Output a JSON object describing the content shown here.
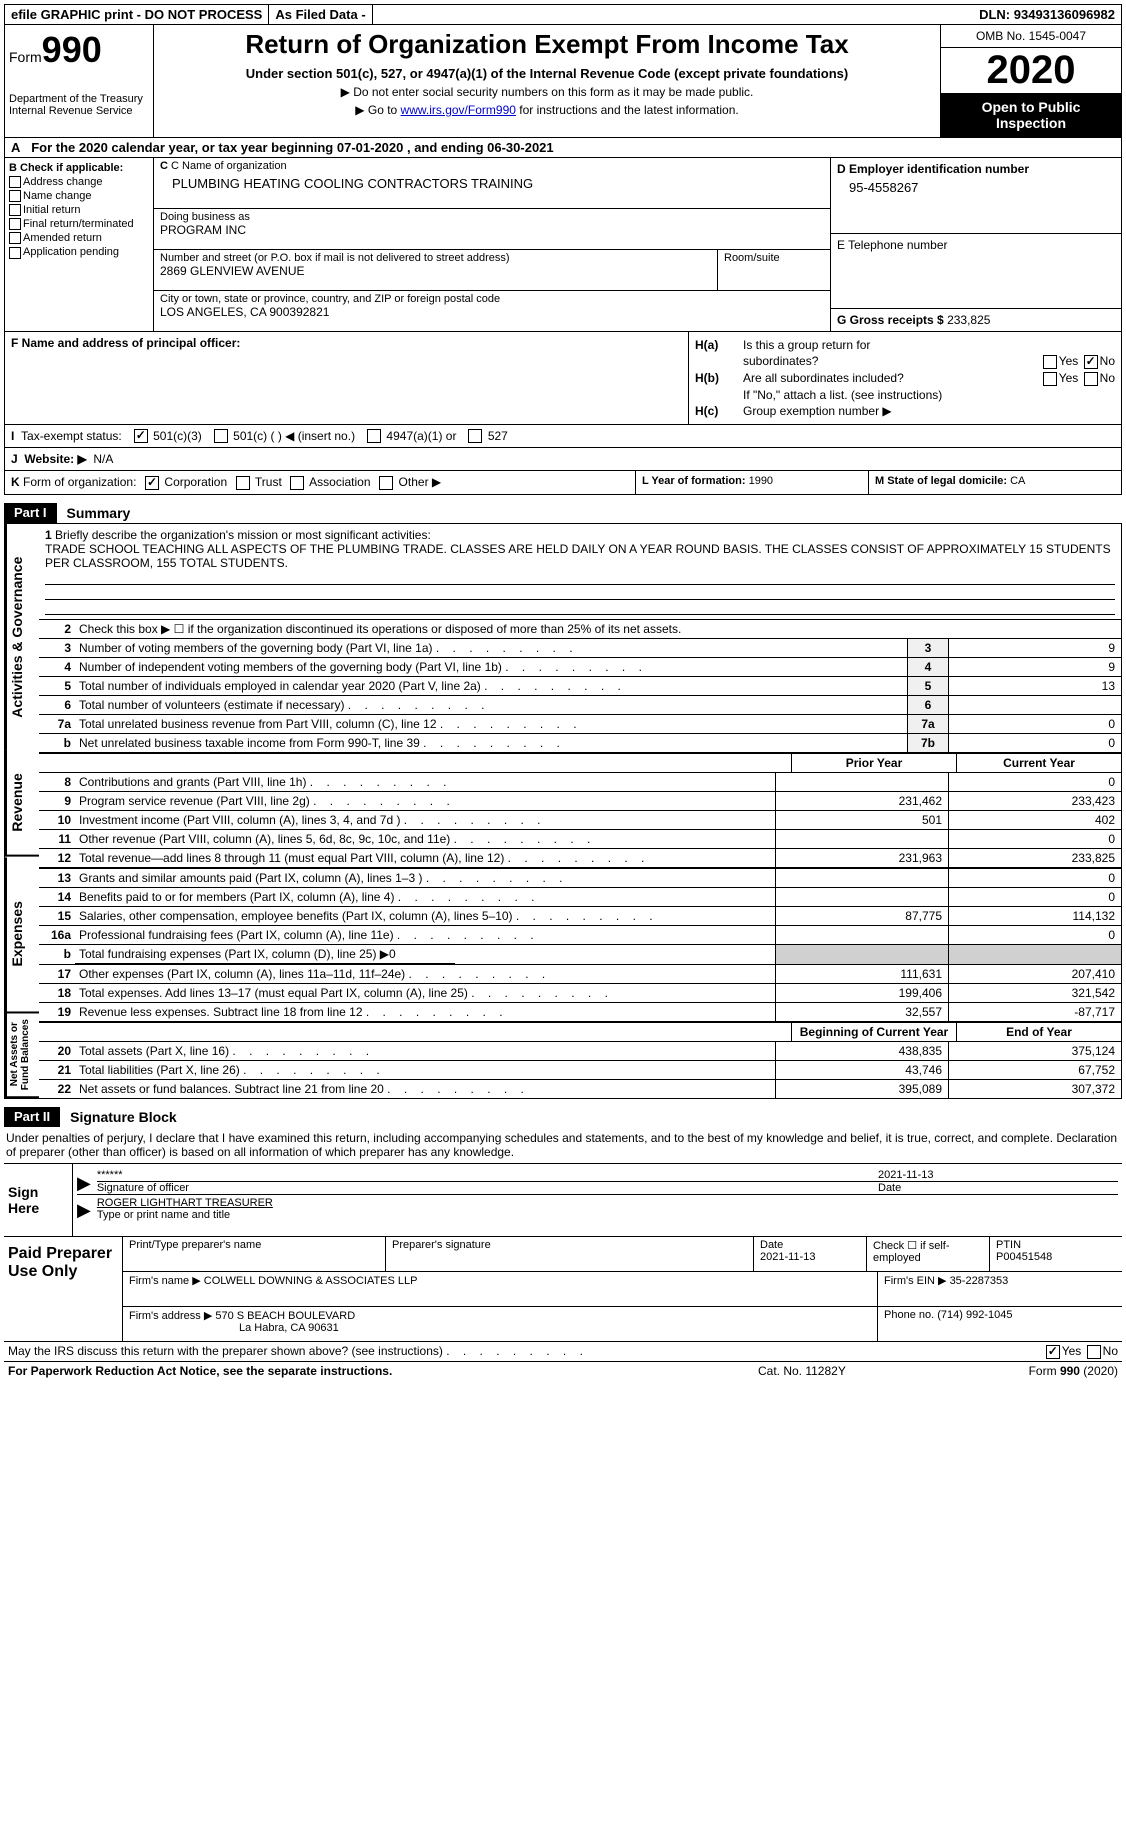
{
  "topbar": {
    "efile": "efile GRAPHIC print - DO NOT PROCESS",
    "asfiled": "As Filed Data -",
    "dln_label": "DLN:",
    "dln": "93493136096982"
  },
  "header": {
    "form_word": "Form",
    "form_num": "990",
    "dept": "Department of the Treasury\nInternal Revenue Service",
    "title": "Return of Organization Exempt From Income Tax",
    "sub": "Under section 501(c), 527, or 4947(a)(1) of the Internal Revenue Code (except private foundations)",
    "arrow1": "▶ Do not enter social security numbers on this form as it may be made public.",
    "arrow2_pre": "▶ Go to ",
    "arrow2_link": "www.irs.gov/Form990",
    "arrow2_post": " for instructions and the latest information.",
    "omb": "OMB No. 1545-0047",
    "year": "2020",
    "open": "Open to Public Inspection"
  },
  "rowA": {
    "label": "A",
    "text_pre": "For the 2020 calendar year, or tax year beginning ",
    "begin": "07-01-2020",
    "mid": "   , and ending ",
    "end": "06-30-2021"
  },
  "colB": {
    "label": "B Check if applicable:",
    "items": [
      "Address change",
      "Name change",
      "Initial return",
      "Final return/terminated",
      "Amended return",
      "Application pending"
    ]
  },
  "colC": {
    "c_label": "C Name of organization",
    "org": "PLUMBING HEATING COOLING CONTRACTORS TRAINING",
    "dba_label": "Doing business as",
    "dba": "PROGRAM INC",
    "addr_label": "Number and street (or P.O. box if mail is not delivered to street address)",
    "addr": "2869 GLENVIEW AVENUE",
    "room_label": "Room/suite",
    "city_label": "City or town, state or province, country, and ZIP or foreign postal code",
    "city": "LOS ANGELES, CA  900392821"
  },
  "colD": {
    "label": "D Employer identification number",
    "ein": "95-4558267"
  },
  "colE": {
    "label": "E Telephone number"
  },
  "colG": {
    "label": "G Gross receipts $",
    "val": "233,825"
  },
  "colF": {
    "label": "F  Name and address of principal officer:"
  },
  "colH": {
    "a_label": "H(a)",
    "a_text": "Is this a group return for",
    "a_text2": "subordinates?",
    "b_label": "H(b)",
    "b_text": "Are all subordinates included?",
    "b_note": "If \"No,\" attach a list. (see instructions)",
    "c_label": "H(c)",
    "c_text": "Group exemption number ▶"
  },
  "rowI": {
    "label": "I",
    "text": "Tax-exempt status:",
    "opts": [
      "501(c)(3)",
      "501(c) (   ) ◀ (insert no.)",
      "4947(a)(1) or",
      "527"
    ]
  },
  "rowJ": {
    "label": "J",
    "text": "Website: ▶",
    "val": "N/A"
  },
  "rowK": {
    "label": "K",
    "text": "Form of organization:",
    "opts": [
      "Corporation",
      "Trust",
      "Association",
      "Other ▶"
    ]
  },
  "rowL": {
    "label": "L Year of formation:",
    "val": "1990"
  },
  "rowM": {
    "label": "M State of legal domicile:",
    "val": "CA"
  },
  "part1": {
    "badge": "Part I",
    "title": "Summary"
  },
  "mission": {
    "num": "1",
    "label": "Briefly describe the organization's mission or most significant activities:",
    "text": "TRADE SCHOOL TEACHING ALL ASPECTS OF THE PLUMBING TRADE. CLASSES ARE HELD DAILY ON A YEAR ROUND BASIS. THE CLASSES CONSIST OF APPROXIMATELY 15 STUDENTS PER CLASSROOM, 155 TOTAL STUDENTS."
  },
  "line2": {
    "num": "2",
    "text": "Check this box ▶ ☐ if the organization discontinued its operations or disposed of more than 25% of its net assets."
  },
  "gov_lines": [
    {
      "n": "3",
      "t": "Number of voting members of the governing body (Part VI, line 1a)",
      "box": "3",
      "v": "9"
    },
    {
      "n": "4",
      "t": "Number of independent voting members of the governing body (Part VI, line 1b)",
      "box": "4",
      "v": "9"
    },
    {
      "n": "5",
      "t": "Total number of individuals employed in calendar year 2020 (Part V, line 2a)",
      "box": "5",
      "v": "13"
    },
    {
      "n": "6",
      "t": "Total number of volunteers (estimate if necessary)",
      "box": "6",
      "v": ""
    },
    {
      "n": "7a",
      "t": "Total unrelated business revenue from Part VIII, column (C), line 12",
      "box": "7a",
      "v": "0"
    },
    {
      "n": "b",
      "t": "Net unrelated business taxable income from Form 990-T, line 39",
      "box": "7b",
      "v": "0"
    }
  ],
  "col_headers": {
    "prior": "Prior Year",
    "current": "Current Year"
  },
  "rev_lines": [
    {
      "n": "8",
      "t": "Contributions and grants (Part VIII, line 1h)",
      "p": "",
      "c": "0"
    },
    {
      "n": "9",
      "t": "Program service revenue (Part VIII, line 2g)",
      "p": "231,462",
      "c": "233,423"
    },
    {
      "n": "10",
      "t": "Investment income (Part VIII, column (A), lines 3, 4, and 7d )",
      "p": "501",
      "c": "402"
    },
    {
      "n": "11",
      "t": "Other revenue (Part VIII, column (A), lines 5, 6d, 8c, 9c, 10c, and 11e)",
      "p": "",
      "c": "0"
    },
    {
      "n": "12",
      "t": "Total revenue—add lines 8 through 11 (must equal Part VIII, column (A), line 12)",
      "p": "231,963",
      "c": "233,825"
    }
  ],
  "exp_lines": [
    {
      "n": "13",
      "t": "Grants and similar amounts paid (Part IX, column (A), lines 1–3 )",
      "p": "",
      "c": "0"
    },
    {
      "n": "14",
      "t": "Benefits paid to or for members (Part IX, column (A), line 4)",
      "p": "",
      "c": "0"
    },
    {
      "n": "15",
      "t": "Salaries, other compensation, employee benefits (Part IX, column (A), lines 5–10)",
      "p": "87,775",
      "c": "114,132"
    },
    {
      "n": "16a",
      "t": "Professional fundraising fees (Part IX, column (A), line 11e)",
      "p": "",
      "c": "0"
    },
    {
      "n": "b",
      "t": "Total fundraising expenses (Part IX, column (D), line 25) ▶0",
      "p": "",
      "c": "",
      "nobox": true
    },
    {
      "n": "17",
      "t": "Other expenses (Part IX, column (A), lines 11a–11d, 11f–24e)",
      "p": "111,631",
      "c": "207,410"
    },
    {
      "n": "18",
      "t": "Total expenses. Add lines 13–17 (must equal Part IX, column (A), line 25)",
      "p": "199,406",
      "c": "321,542"
    },
    {
      "n": "19",
      "t": "Revenue less expenses. Subtract line 18 from line 12",
      "p": "32,557",
      "c": "-87,717"
    }
  ],
  "na_headers": {
    "b": "Beginning of Current Year",
    "e": "End of Year"
  },
  "na_lines": [
    {
      "n": "20",
      "t": "Total assets (Part X, line 16)",
      "p": "438,835",
      "c": "375,124"
    },
    {
      "n": "21",
      "t": "Total liabilities (Part X, line 26)",
      "p": "43,746",
      "c": "67,752"
    },
    {
      "n": "22",
      "t": "Net assets or fund balances. Subtract line 21 from line 20",
      "p": "395,089",
      "c": "307,372"
    }
  ],
  "vtabs": {
    "gov": "Activities & Governance",
    "rev": "Revenue",
    "exp": "Expenses",
    "na": "Net Assets or Fund Balances"
  },
  "part2": {
    "badge": "Part II",
    "title": "Signature Block"
  },
  "sig_intro": "Under penalties of perjury, I declare that I have examined this return, including accompanying schedules and statements, and to the best of my knowledge and belief, it is true, correct, and complete. Declaration of preparer (other than officer) is based on all information of which preparer has any knowledge.",
  "sign": {
    "left": "Sign Here",
    "stars": "******",
    "sig_label": "Signature of officer",
    "date": "2021-11-13",
    "date_label": "Date",
    "name": "ROGER LIGHTHART TREASURER",
    "name_label": "Type or print name and title"
  },
  "prep": {
    "left": "Paid Preparer Use Only",
    "h1": "Print/Type preparer's name",
    "h2": "Preparer's signature",
    "h3_label": "Date",
    "h3": "2021-11-13",
    "h4_label": "Check ☐ if self-employed",
    "h5_label": "PTIN",
    "h5": "P00451548",
    "firm_name_label": "Firm's name    ▶",
    "firm_name": "COLWELL DOWNING & ASSOCIATES LLP",
    "firm_ein_label": "Firm's EIN ▶",
    "firm_ein": "35-2287353",
    "firm_addr_label": "Firm's address ▶",
    "firm_addr1": "570 S BEACH BOULEVARD",
    "firm_addr2": "La Habra, CA  90631",
    "phone_label": "Phone no.",
    "phone": "(714) 992-1045"
  },
  "discuss": {
    "text": "May the IRS discuss this return with the preparer shown above? (see instructions)",
    "yes": "Yes",
    "no": "No"
  },
  "footer": {
    "pra": "For Paperwork Reduction Act Notice, see the separate instructions.",
    "cat": "Cat. No. 11282Y",
    "form": "Form 990 (2020)"
  },
  "yn": {
    "yes": "Yes",
    "no": "No"
  }
}
